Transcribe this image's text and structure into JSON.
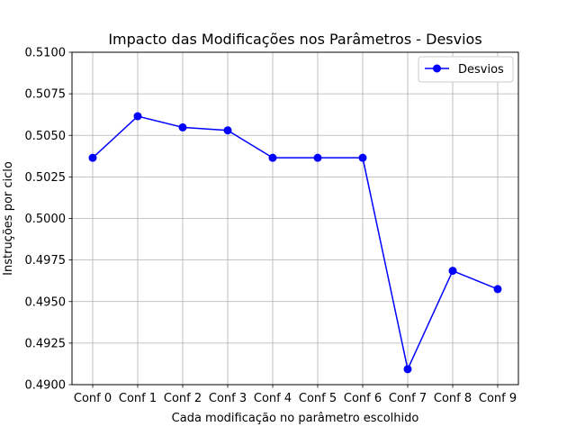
{
  "chart_data": {
    "type": "line",
    "title": "Impacto das Modificações nos Parâmetros - Desvios",
    "xlabel": "Cada modificação no parâmetro escolhido",
    "ylabel": "Instruções por ciclo",
    "categories": [
      "Conf 0",
      "Conf 1",
      "Conf 2",
      "Conf 3",
      "Conf 4",
      "Conf 5",
      "Conf 6",
      "Conf 7",
      "Conf 8",
      "Conf 9"
    ],
    "series": [
      {
        "name": "Desvios",
        "color": "#0000ff",
        "values": [
          0.50365,
          0.50615,
          0.50548,
          0.5053,
          0.50365,
          0.50365,
          0.50365,
          0.49093,
          0.49685,
          0.49575
        ]
      }
    ],
    "ylim": [
      0.49,
      0.51
    ],
    "yticks": [
      "0.4900",
      "0.4925",
      "0.4950",
      "0.4975",
      "0.5000",
      "0.5025",
      "0.5050",
      "0.5075",
      "0.5100"
    ],
    "grid": true,
    "legend_position": "top-right"
  }
}
